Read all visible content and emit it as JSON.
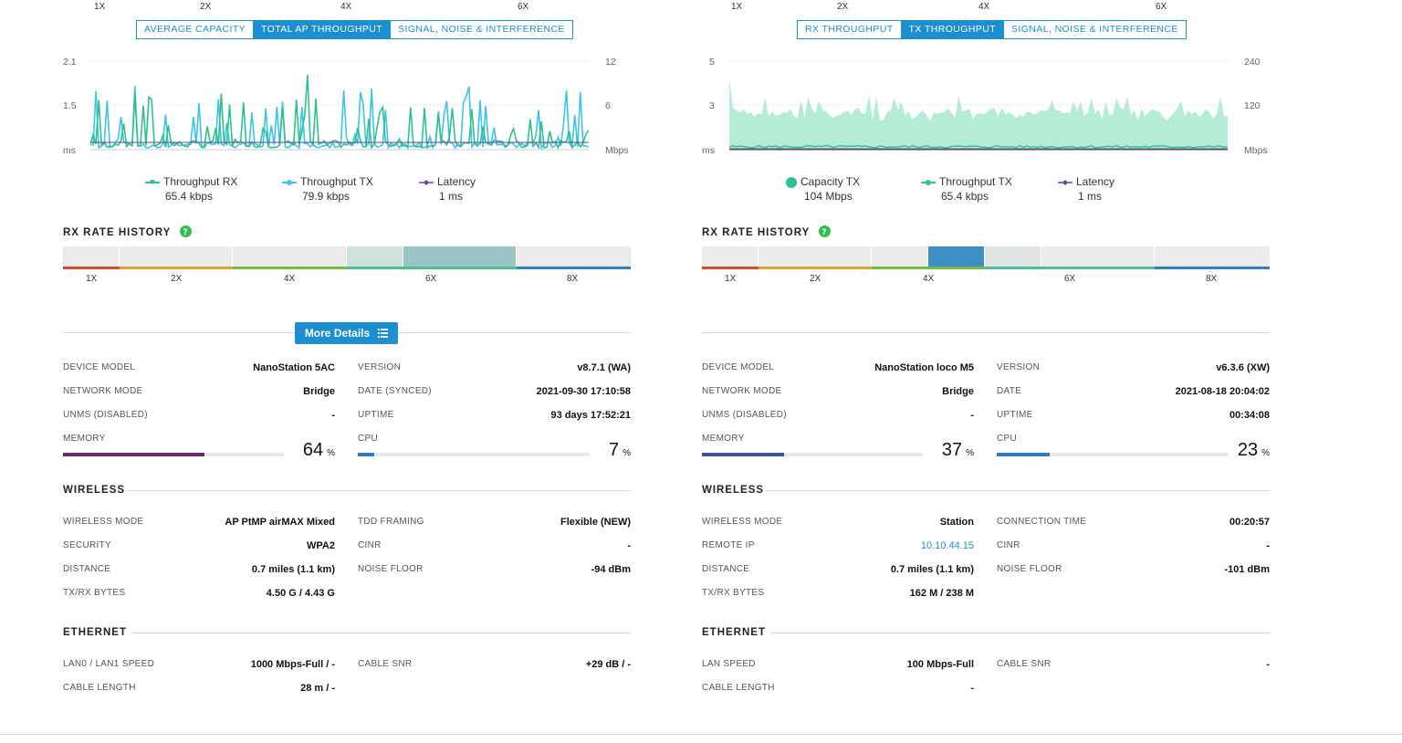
{
  "colors": {
    "accent": "#1c8fd0",
    "rx": "#2ec28a",
    "tx": "#3ec3ea",
    "latency": "#6b3fa0",
    "capacity": "#b4ecd6"
  },
  "left": {
    "top_rates": [
      "1X",
      "2X",
      "4X",
      "6X"
    ],
    "tabs": [
      "AVERAGE CAPACITY",
      "TOTAL AP THROUGHPUT",
      "SIGNAL, NOISE & INTERFERENCE"
    ],
    "active_tab": 1,
    "y_left": [
      "2.1",
      "1.5",
      "ms"
    ],
    "y_right": [
      "12",
      "6",
      "Mbps"
    ],
    "legend": [
      {
        "name": "Throughput RX",
        "value": "65.4 kbps"
      },
      {
        "name": "Throughput TX",
        "value": "79.9 kbps"
      },
      {
        "name": "Latency",
        "value": "1 ms"
      }
    ],
    "rx_history_title": "RX RATE HISTORY",
    "rx_labels": [
      "1X",
      "2X",
      "4X",
      "6X",
      "8X"
    ],
    "more_details": "More Details",
    "fields": {
      "device_model_l": "DEVICE MODEL",
      "device_model": "NanoStation 5AC",
      "version_l": "VERSION",
      "version": "v8.7.1 (WA)",
      "network_mode_l": "NETWORK MODE",
      "network_mode": "Bridge",
      "date_l": "DATE (SYNCED)",
      "date": "2021-09-30 17:10:58",
      "unms_l": "UNMS (DISABLED)",
      "unms": "-",
      "uptime_l": "UPTIME",
      "uptime": "93 days 17:52:21",
      "memory_l": "MEMORY",
      "memory": "64",
      "memory_pct": 64,
      "cpu_l": "CPU",
      "cpu": "7",
      "cpu_pct": 7,
      "pct_unit": "%"
    },
    "wireless_title": "WIRELESS",
    "wireless": {
      "mode_l": "WIRELESS MODE",
      "mode": "AP PtMP airMAX Mixed",
      "tdd_l": "TDD FRAMING",
      "tdd": "Flexible (NEW)",
      "security_l": "SECURITY",
      "security": "WPA2",
      "cinr_l": "CINR",
      "cinr": "-",
      "distance_l": "DISTANCE",
      "distance": "0.7 miles (1.1 km)",
      "noise_l": "NOISE FLOOR",
      "noise": "-94 dBm",
      "bytes_l": "TX/RX BYTES",
      "bytes": "4.50 G / 4.43 G"
    },
    "ethernet_title": "ETHERNET",
    "ethernet": {
      "speed_l": "LAN0 / LAN1 SPEED",
      "speed": "1000 Mbps-Full / -",
      "snr_l": "CABLE SNR",
      "snr": "+29 dB / -",
      "length_l": "CABLE LENGTH",
      "length": "28 m / -"
    }
  },
  "right": {
    "top_rates": [
      "1X",
      "2X",
      "4X",
      "6X"
    ],
    "tabs": [
      "RX THROUGHPUT",
      "TX THROUGHPUT",
      "SIGNAL, NOISE & INTERFERENCE"
    ],
    "active_tab": 1,
    "y_left": [
      "5",
      "3",
      "ms"
    ],
    "y_right": [
      "240",
      "120",
      "Mbps"
    ],
    "legend": [
      {
        "name": "Capacity TX",
        "value": "104 Mbps"
      },
      {
        "name": "Throughput TX",
        "value": "65.4 kbps"
      },
      {
        "name": "Latency",
        "value": "1 ms"
      }
    ],
    "rx_history_title": "RX RATE HISTORY",
    "rx_labels": [
      "1X",
      "2X",
      "4X",
      "6X",
      "8X"
    ],
    "fields": {
      "device_model_l": "DEVICE MODEL",
      "device_model": "NanoStation loco M5",
      "version_l": "VERSION",
      "version": "v6.3.6 (XW)",
      "network_mode_l": "NETWORK MODE",
      "network_mode": "Bridge",
      "date_l": "DATE",
      "date": "2021-08-18 20:04:02",
      "unms_l": "UNMS (DISABLED)",
      "unms": "-",
      "uptime_l": "UPTIME",
      "uptime": "00:34:08",
      "memory_l": "MEMORY",
      "memory": "37",
      "memory_pct": 37,
      "cpu_l": "CPU",
      "cpu": "23",
      "cpu_pct": 23,
      "pct_unit": "%"
    },
    "wireless_title": "WIRELESS",
    "wireless": {
      "mode_l": "WIRELESS MODE",
      "mode": "Station",
      "conn_l": "CONNECTION TIME",
      "conn": "00:20:57",
      "remote_l": "REMOTE IP",
      "remote": "10.10.44.15",
      "cinr_l": "CINR",
      "cinr": "-",
      "distance_l": "DISTANCE",
      "distance": "0.7 miles (1.1 km)",
      "noise_l": "NOISE FLOOR",
      "noise": "-101 dBm",
      "bytes_l": "TX/RX BYTES",
      "bytes": "162 M / 238 M"
    },
    "ethernet_title": "ETHERNET",
    "ethernet": {
      "speed_l": "LAN SPEED",
      "speed": "100 Mbps-Full",
      "snr_l": "CABLE SNR",
      "snr": "-",
      "length_l": "CABLE LENGTH",
      "length": "-"
    }
  }
}
